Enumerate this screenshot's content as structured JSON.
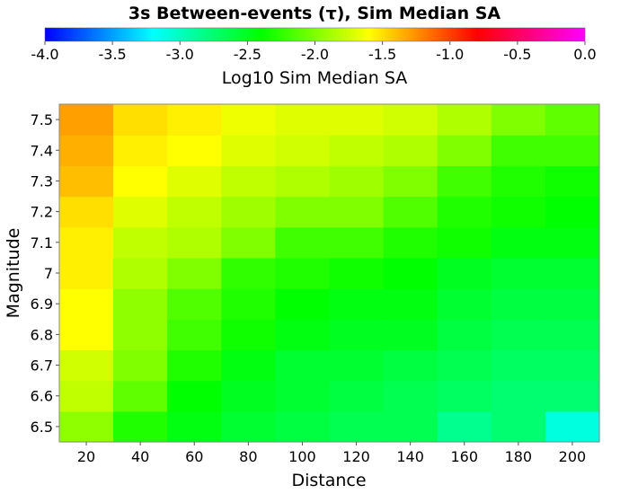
{
  "chart_data": {
    "type": "heatmap",
    "title": "3s Between-events (τ), Sim Median SA",
    "xlabel": "Distance",
    "ylabel": "Magnitude",
    "x": [
      20,
      40,
      60,
      80,
      100,
      120,
      140,
      160,
      180,
      200
    ],
    "y": [
      6.5,
      6.6,
      6.7,
      6.8,
      6.9,
      7.0,
      7.1,
      7.2,
      7.3,
      7.4,
      7.5
    ],
    "x_tick_labels": [
      "20",
      "40",
      "60",
      "80",
      "100",
      "120",
      "140",
      "160",
      "180",
      "200"
    ],
    "y_tick_labels": [
      "6.5",
      "6.6",
      "6.7",
      "6.8",
      "6.9",
      "7",
      "7.1",
      "7.2",
      "7.3",
      "7.4",
      "7.5"
    ],
    "values": [
      [
        -1.95,
        -2.3,
        -2.45,
        -2.55,
        -2.6,
        -2.65,
        -2.65,
        -2.85,
        -2.75,
        -3.1
      ],
      [
        -1.8,
        -2.1,
        -2.4,
        -2.5,
        -2.55,
        -2.6,
        -2.65,
        -2.7,
        -2.75,
        -2.75
      ],
      [
        -1.75,
        -2.0,
        -2.3,
        -2.45,
        -2.55,
        -2.55,
        -2.6,
        -2.65,
        -2.7,
        -2.7
      ],
      [
        -1.6,
        -1.95,
        -2.2,
        -2.35,
        -2.45,
        -2.5,
        -2.5,
        -2.6,
        -2.65,
        -2.65
      ],
      [
        -1.6,
        -1.95,
        -2.15,
        -2.3,
        -2.4,
        -2.45,
        -2.45,
        -2.55,
        -2.6,
        -2.6
      ],
      [
        -1.55,
        -1.85,
        -2.0,
        -2.25,
        -2.3,
        -2.35,
        -2.4,
        -2.5,
        -2.55,
        -2.55
      ],
      [
        -1.55,
        -1.8,
        -1.85,
        -2.0,
        -2.2,
        -2.2,
        -2.3,
        -2.35,
        -2.45,
        -2.45
      ],
      [
        -1.5,
        -1.7,
        -1.8,
        -1.9,
        -2.0,
        -2.0,
        -2.15,
        -2.3,
        -2.35,
        -2.4
      ],
      [
        -1.4,
        -1.6,
        -1.7,
        -1.8,
        -1.85,
        -1.9,
        -2.0,
        -2.2,
        -2.3,
        -2.35
      ],
      [
        -1.35,
        -1.55,
        -1.6,
        -1.7,
        -1.75,
        -1.8,
        -1.85,
        -2.0,
        -2.2,
        -2.2
      ],
      [
        -1.3,
        -1.5,
        -1.55,
        -1.65,
        -1.7,
        -1.7,
        -1.75,
        -1.85,
        -2.0,
        -2.1
      ]
    ],
    "colorbar": {
      "label": "Log10 Sim Median SA",
      "range": [
        -4.0,
        0.0
      ],
      "ticks": [
        -4.0,
        -3.5,
        -3.0,
        -2.5,
        -2.0,
        -1.5,
        -1.0,
        -0.5,
        0.0
      ],
      "tick_labels": [
        "-4.0",
        "-3.5",
        "-3.0",
        "-2.5",
        "-2.0",
        "-1.5",
        "-1.0",
        "-0.5",
        "0.0"
      ],
      "stops": [
        "#0000ff",
        "#00ffff",
        "#00ff00",
        "#ffff00",
        "#ff0000",
        "#ff00ff"
      ],
      "position": "top"
    },
    "grid": false,
    "legend": "none"
  }
}
